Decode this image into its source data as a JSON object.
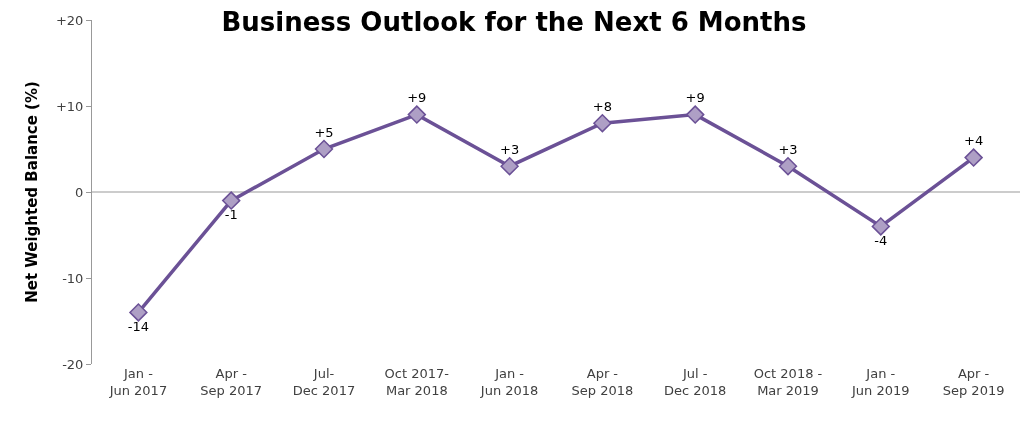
{
  "chart_data": {
    "type": "line",
    "title": "Business Outlook for the Next 6 Months",
    "ylabel": "Net Weighted Balance (%)",
    "categories": [
      "Jan -\nJun 2017",
      "Apr -\nSep 2017",
      "Jul-\nDec 2017",
      "Oct 2017-\nMar 2018",
      "Jan -\nJun 2018",
      "Apr -\nSep 2018",
      "Jul -\nDec 2018",
      "Oct 2018 -\nMar 2019",
      "Jan -\nJun 2019",
      "Apr -\nSep 2019"
    ],
    "series": [
      {
        "color": "#6b5196",
        "values": [
          -14,
          -1,
          5,
          9,
          3,
          8,
          9,
          3,
          -4,
          4
        ],
        "value_labels": [
          "-14",
          "-1",
          "+5",
          "+9",
          "+3",
          "+8",
          "+9",
          "+3",
          "-4",
          "+4"
        ]
      }
    ],
    "ylim": [
      -20,
      20
    ],
    "yticks": [
      {
        "value": -20,
        "label": "-20"
      },
      {
        "value": -10,
        "label": "-10"
      },
      {
        "value": 0,
        "label": "0"
      },
      {
        "value": 10,
        "label": "+10"
      },
      {
        "value": 20,
        "label": "+20"
      }
    ],
    "ref_lines": [
      {
        "axis": "y",
        "value": 0,
        "color": "#999999"
      }
    ],
    "marker": "diamond",
    "line_style": "solid"
  }
}
